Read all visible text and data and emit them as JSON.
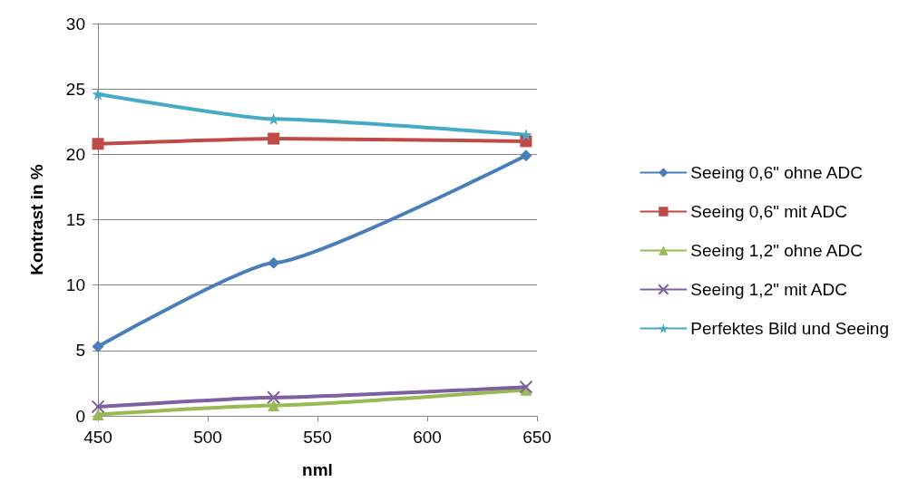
{
  "chart_data": {
    "type": "line",
    "xlabel": "nml",
    "ylabel": "Kontrast in %",
    "xlim": [
      450,
      650
    ],
    "xticks": [
      450,
      500,
      550,
      600,
      650
    ],
    "ylim": [
      0,
      30
    ],
    "yticks": [
      0,
      5,
      10,
      15,
      20,
      25,
      30
    ],
    "grid": "y",
    "legend": "right",
    "line_style": "solid",
    "series": [
      {
        "name": "Seeing 0,6\" ohne ADC",
        "color": "#4a7ebb",
        "marker": "diamond",
        "x": [
          450,
          530,
          645
        ],
        "values": [
          5.3,
          11.7,
          19.9
        ]
      },
      {
        "name": "Seeing 0,6\" mit ADC",
        "color": "#be4b48",
        "marker": "square",
        "x": [
          450,
          530,
          645
        ],
        "values": [
          20.8,
          21.2,
          21.0
        ]
      },
      {
        "name": "Seeing 1,2\" ohne ADC",
        "color": "#98b954",
        "marker": "triangle",
        "x": [
          450,
          530,
          645
        ],
        "values": [
          0.1,
          0.8,
          2.0
        ]
      },
      {
        "name": "Seeing 1,2\" mit ADC",
        "color": "#7d60a0",
        "marker": "cross",
        "x": [
          450,
          530,
          645
        ],
        "values": [
          0.7,
          1.4,
          2.2
        ]
      },
      {
        "name": "Perfektes Bild und Seeing",
        "color": "#46aac5",
        "marker": "star",
        "x": [
          450,
          530,
          645
        ],
        "values": [
          24.6,
          22.7,
          21.5
        ]
      }
    ]
  }
}
